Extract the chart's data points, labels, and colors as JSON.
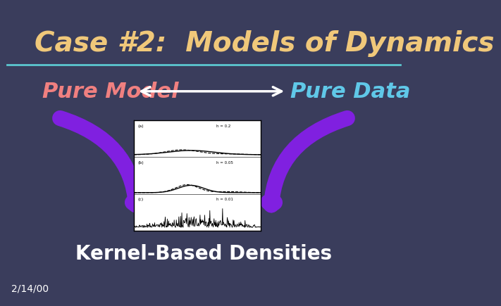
{
  "background_color": "#3a3d5c",
  "title": "Case #2:  Models of Dynamics",
  "title_color": "#f0c87a",
  "title_fontsize": 28,
  "title_bold": true,
  "separator_color": "#5bc8d0",
  "pure_model_text": "Pure Model",
  "pure_model_color": "#f08080",
  "pure_data_text": "Pure Data",
  "pure_data_color": "#60c8e8",
  "label_fontsize": 22,
  "kernel_text": "Kernel-Based Densities",
  "kernel_color": "#ffffff",
  "kernel_fontsize": 20,
  "date_text": "2/14/00",
  "date_color": "#ffffff",
  "date_fontsize": 10,
  "arrow_color": "#8020e0",
  "double_arrow_color": "#ffffff"
}
